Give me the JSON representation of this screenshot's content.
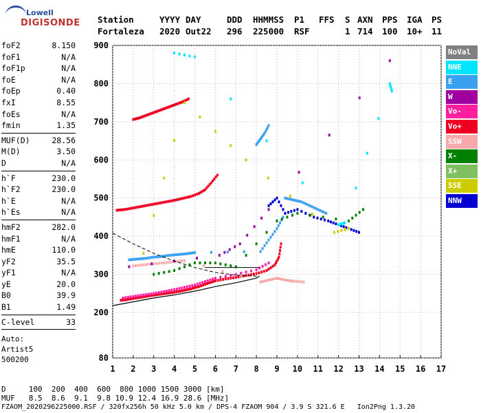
{
  "logo": {
    "line1": "Lowell",
    "line2": "DIGISONDE"
  },
  "header": {
    "labels": [
      "Station",
      "YYYY",
      "DAY",
      "DDD",
      "HHMMSS",
      "P1",
      "FFS",
      "S",
      "AXN",
      "PPS",
      "IGA",
      "PS"
    ],
    "values": [
      "Fortaleza",
      "2020",
      "Out22",
      "296",
      "225000",
      "RSF",
      "1",
      "714",
      "100",
      "10+",
      "11"
    ]
  },
  "params": [
    [
      {
        "name": "foF2",
        "value": "8.150"
      },
      {
        "name": "foF1",
        "value": "N/A"
      },
      {
        "name": "foF1p",
        "value": "N/A"
      },
      {
        "name": "foE",
        "value": "N/A"
      },
      {
        "name": "foEp",
        "value": "0.40"
      },
      {
        "name": "fxI",
        "value": "8.55"
      },
      {
        "name": "foEs",
        "value": "N/A"
      },
      {
        "name": "fmin",
        "value": "1.35"
      }
    ],
    [
      {
        "name": "MUF(D)",
        "value": "28.56"
      },
      {
        "name": "M(D)",
        "value": "3.50"
      },
      {
        "name": "D",
        "value": "N/A"
      }
    ],
    [
      {
        "name": "h`F",
        "value": "230.0"
      },
      {
        "name": "h`F2",
        "value": "230.0"
      },
      {
        "name": "h`E",
        "value": "N/A"
      },
      {
        "name": "h`Es",
        "value": "N/A"
      }
    ],
    [
      {
        "name": "hmF2",
        "value": "282.0"
      },
      {
        "name": "hmF1",
        "value": "N/A"
      },
      {
        "name": "hmE",
        "value": "110.0"
      },
      {
        "name": "yF2",
        "value": "35.5"
      },
      {
        "name": "yF1",
        "value": "N/A"
      },
      {
        "name": "yE",
        "value": "20.0"
      },
      {
        "name": "B0",
        "value": "39.9"
      },
      {
        "name": "B1",
        "value": "1.49"
      }
    ],
    [
      {
        "name": "C-level",
        "value": "33"
      }
    ]
  ],
  "auto": {
    "line1": "Auto:",
    "line2": "Artist5",
    "line3": "500200"
  },
  "footer": {
    "d_row": "D     100  200  400  600  800 1000 1500 3000 [km]",
    "muf_row": "MUF   8.5  8.6  9.1  9.8 10.9 12.4 16.9 28.6 [MHz]",
    "info": "FZAOM_2020296225000.RSF / 320fx256h 50 kHz 5.0 km / DPS-4 FZAOM 904 / 3.9 S 321.6 E   Ion2Png 1.3.20"
  },
  "legend": [
    {
      "label": "NoVal",
      "color": "#808080"
    },
    {
      "label": "NNE",
      "color": "#00e5ff"
    },
    {
      "label": "E",
      "color": "#3aa0f0"
    },
    {
      "label": "W",
      "color": "#a000a0"
    },
    {
      "label": "Vo-",
      "color": "#ff1fa0"
    },
    {
      "label": "Vo+",
      "color": "#ee0022"
    },
    {
      "label": "SSW",
      "color": "#f7a8a8"
    },
    {
      "label": "X-",
      "color": "#008000"
    },
    {
      "label": "X+",
      "color": "#80c060"
    },
    {
      "label": "SSE",
      "color": "#cccc00"
    },
    {
      "label": "NNW",
      "color": "#0000d0"
    }
  ],
  "chart_data": {
    "type": "scatter",
    "title": "",
    "xlabel": "",
    "ylabel": "",
    "xlim": [
      1,
      17
    ],
    "ylim": [
      80,
      900
    ],
    "x_ticks": [
      1,
      2,
      3,
      4,
      5,
      6,
      7,
      8,
      9,
      10,
      11,
      12,
      13,
      14,
      15,
      16,
      17
    ],
    "y_ticks": [
      80,
      200,
      300,
      400,
      500,
      600,
      700,
      800,
      900
    ],
    "grid": true,
    "legend_position": "right",
    "traces": [
      {
        "name": "Vo+",
        "color": "#ee0022",
        "points": [
          [
            1.4,
            232
          ],
          [
            1.7,
            234
          ],
          [
            2.0,
            237
          ],
          [
            2.4,
            240
          ],
          [
            2.8,
            244
          ],
          [
            3.2,
            247
          ],
          [
            3.6,
            250
          ],
          [
            4.0,
            253
          ],
          [
            4.4,
            257
          ],
          [
            4.8,
            262
          ],
          [
            5.2,
            268
          ],
          [
            5.6,
            276
          ],
          [
            6.0,
            283
          ],
          [
            6.5,
            288
          ],
          [
            7.0,
            292
          ],
          [
            7.5,
            297
          ],
          [
            8.0,
            302
          ],
          [
            8.5,
            310
          ],
          [
            8.9,
            325
          ],
          [
            9.1,
            345
          ],
          [
            9.2,
            380
          ]
        ]
      },
      {
        "name": "Vo-",
        "color": "#ff1fa0",
        "points": [
          [
            1.5,
            238
          ],
          [
            2.0,
            242
          ],
          [
            2.5,
            246
          ],
          [
            3.0,
            250
          ],
          [
            3.5,
            255
          ],
          [
            4.0,
            260
          ],
          [
            4.5,
            266
          ],
          [
            5.0,
            272
          ],
          [
            5.5,
            281
          ],
          [
            6.0,
            290
          ],
          [
            7.0,
            300
          ],
          [
            8.0,
            312
          ],
          [
            8.6,
            330
          ]
        ]
      },
      {
        "name": "E",
        "color": "#3aa0f0",
        "points": [
          [
            1.8,
            338
          ],
          [
            2.2,
            340
          ],
          [
            2.6,
            342
          ],
          [
            3.0,
            345
          ],
          [
            3.4,
            347
          ],
          [
            3.8,
            350
          ],
          [
            4.2,
            352
          ],
          [
            4.6,
            354
          ],
          [
            5.0,
            357
          ],
          [
            8.2,
            360
          ],
          [
            8.6,
            390
          ],
          [
            9.0,
            420
          ],
          [
            9.3,
            450
          ]
        ]
      },
      {
        "name": "SSW",
        "color": "#f7a8a8",
        "points": [
          [
            2.0,
            322
          ],
          [
            2.5,
            325
          ],
          [
            3.0,
            328
          ],
          [
            3.5,
            330
          ],
          [
            4.0,
            333
          ],
          [
            4.5,
            336
          ],
          [
            8.2,
            280
          ],
          [
            8.6,
            285
          ],
          [
            9.0,
            290
          ],
          [
            9.4,
            285
          ],
          [
            9.8,
            282
          ],
          [
            10.3,
            280
          ]
        ]
      },
      {
        "name": "Vo+",
        "color": "#ee0022",
        "points": [
          [
            1.2,
            468
          ],
          [
            1.6,
            470
          ],
          [
            2.0,
            474
          ],
          [
            2.4,
            478
          ],
          [
            2.8,
            482
          ],
          [
            3.2,
            486
          ],
          [
            3.6,
            490
          ],
          [
            4.0,
            494
          ],
          [
            4.4,
            499
          ],
          [
            4.8,
            504
          ],
          [
            5.2,
            512
          ],
          [
            5.5,
            522
          ],
          [
            5.8,
            540
          ],
          [
            6.1,
            560
          ]
        ]
      },
      {
        "name": "E",
        "color": "#3aa0f0",
        "points": [
          [
            8.0,
            640
          ],
          [
            8.2,
            655
          ],
          [
            8.4,
            670
          ],
          [
            8.6,
            690
          ]
        ]
      },
      {
        "name": "Vo+",
        "color": "#ee0022",
        "points": [
          [
            2.0,
            706
          ],
          [
            2.3,
            710
          ],
          [
            2.6,
            716
          ],
          [
            2.9,
            722
          ],
          [
            3.2,
            728
          ],
          [
            3.5,
            734
          ],
          [
            3.8,
            740
          ],
          [
            4.1,
            746
          ],
          [
            4.4,
            752
          ],
          [
            4.7,
            760
          ]
        ]
      },
      {
        "name": "E",
        "color": "#3aa0f0",
        "points": [
          [
            9.4,
            500
          ],
          [
            9.8,
            495
          ],
          [
            10.2,
            490
          ],
          [
            10.6,
            480
          ],
          [
            11.0,
            470
          ],
          [
            11.4,
            460
          ]
        ]
      },
      {
        "name": "NNW",
        "color": "#0000d0",
        "points": [
          [
            8.6,
            480
          ],
          [
            9.0,
            500
          ],
          [
            9.4,
            460
          ],
          [
            10.0,
            470
          ],
          [
            10.8,
            450
          ],
          [
            11.5,
            440
          ],
          [
            12.0,
            430
          ],
          [
            12.5,
            420
          ],
          [
            13.0,
            410
          ]
        ]
      },
      {
        "name": "X-",
        "color": "#008000",
        "points": [
          [
            3.0,
            300
          ],
          [
            4.0,
            310
          ],
          [
            5.0,
            330
          ],
          [
            6.0,
            330
          ],
          [
            7.0,
            320
          ],
          [
            9.0,
            440
          ],
          [
            10.0,
            460
          ],
          [
            12.5,
            440
          ],
          [
            13.2,
            470
          ]
        ]
      },
      {
        "name": "SSE",
        "color": "#cccc00",
        "points": [
          [
            2.5,
            355
          ],
          [
            4.5,
            750
          ],
          [
            7.5,
            600
          ],
          [
            11.8,
            410
          ],
          [
            12.5,
            420
          ]
        ]
      },
      {
        "name": "NNE",
        "color": "#00e5ff",
        "points": [
          [
            4.0,
            880
          ],
          [
            5.0,
            870
          ],
          [
            12.0,
            430
          ],
          [
            12.3,
            435
          ],
          [
            14.5,
            800
          ],
          [
            14.6,
            780
          ]
        ]
      },
      {
        "name": "W",
        "color": "#a000a0",
        "points": [
          [
            1.8,
            320
          ],
          [
            6.2,
            350
          ],
          [
            7.2,
            380
          ],
          [
            8.6,
            470
          ],
          [
            14.5,
            860
          ]
        ]
      }
    ],
    "profile_line": [
      [
        1.0,
        218
      ],
      [
        2.0,
        228
      ],
      [
        3.0,
        238
      ],
      [
        4.0,
        246
      ],
      [
        5.0,
        256
      ],
      [
        6.0,
        268
      ],
      [
        7.0,
        278
      ],
      [
        8.0,
        290
      ],
      [
        8.15,
        295
      ]
    ],
    "profile_dashed": [
      [
        1.0,
        408
      ],
      [
        2.0,
        380
      ],
      [
        3.0,
        355
      ],
      [
        4.0,
        335
      ],
      [
        5.0,
        318
      ],
      [
        6.0,
        305
      ],
      [
        7.0,
        298
      ],
      [
        8.0,
        295
      ],
      [
        8.15,
        295
      ]
    ],
    "profile_upper": [
      [
        5.5,
        318
      ],
      [
        6.5,
        318
      ],
      [
        7.5,
        318
      ],
      [
        8.15,
        318
      ]
    ]
  }
}
